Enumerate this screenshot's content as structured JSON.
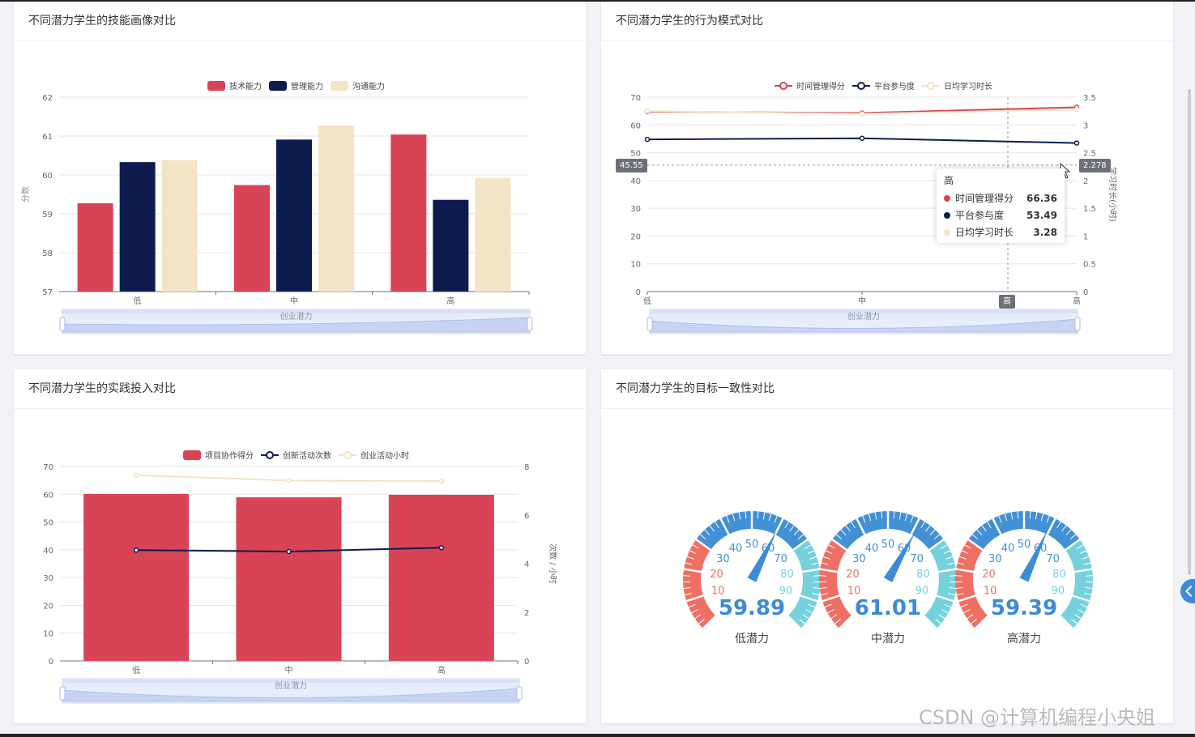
{
  "cards": {
    "skill": {
      "title": "不同潜力学生的技能画像对比"
    },
    "behavior": {
      "title": "不同潜力学生的行为模式对比"
    },
    "practice": {
      "title": "不同潜力学生的实践投入对比"
    },
    "goal": {
      "title": "不同潜力学生的目标一致性对比"
    }
  },
  "chart_data": [
    {
      "type": "bar",
      "categories": [
        "低",
        "中",
        "高"
      ],
      "series": [
        {
          "name": "技术能力",
          "values": [
            59.27,
            59.74,
            61.04
          ],
          "color": "#d84455"
        },
        {
          "name": "管理能力",
          "values": [
            60.33,
            60.91,
            59.36
          ],
          "color": "#0d1b4f"
        },
        {
          "name": "沟通能力",
          "values": [
            60.38,
            61.27,
            59.92
          ],
          "color": "#f4e4c6"
        }
      ],
      "ylim": [
        57,
        62
      ],
      "yticks": [
        "57",
        "58",
        "59",
        "60",
        "61",
        "62"
      ],
      "ylabel": "分数",
      "slider_label": "创业潜力",
      "legend": "top-center"
    },
    {
      "type": "line",
      "categories": [
        "低",
        "中",
        "高"
      ],
      "series": [
        {
          "name": "时间管理得分",
          "values": [
            64.8,
            64.3,
            66.36
          ],
          "color": "#d84455",
          "axis": "left"
        },
        {
          "name": "平台参与度",
          "values": [
            54.8,
            55.2,
            53.49
          ],
          "color": "#0d1b4f",
          "axis": "left"
        },
        {
          "name": "日均学习时长",
          "values": [
            3.25,
            3.2,
            3.28
          ],
          "color": "#f4e4c6",
          "axis": "right"
        }
      ],
      "ylim_left": [
        0,
        70
      ],
      "ylim_right": [
        0,
        3.5
      ],
      "yticks_left": [
        "0",
        "10",
        "20",
        "30",
        "40",
        "50",
        "60",
        "70"
      ],
      "yticks_right": [
        "0",
        "0.5",
        "1",
        "1.5",
        "2",
        "2.5",
        "3",
        "3.5"
      ],
      "ylabel_right": "学习时长(小时)",
      "slider_label": "创业潜力",
      "legend": "top-center",
      "tooltip": {
        "title": "高",
        "rows": [
          {
            "name": "时间管理得分",
            "value": "66.36",
            "color": "#d84455"
          },
          {
            "name": "平台参与度",
            "value": "53.49",
            "color": "#0d1b4f"
          },
          {
            "name": "日均学习时长",
            "value": "3.28",
            "color": "#f4e4c6"
          }
        ]
      },
      "pointer": {
        "left": "45.55",
        "right": "2.278",
        "x": "高"
      }
    },
    {
      "type": "bar",
      "categories": [
        "低",
        "中",
        "高"
      ],
      "bar_series": {
        "name": "项目协作得分",
        "values": [
          60.1,
          58.9,
          59.8
        ],
        "color": "#d84455"
      },
      "line_series": [
        {
          "name": "创新活动次数",
          "values": [
            4.56,
            4.5,
            4.66
          ],
          "color": "#0d1b4f"
        },
        {
          "name": "创业活动小时",
          "values": [
            7.64,
            7.42,
            7.4
          ],
          "color": "#f4e4c6"
        }
      ],
      "ylim_left": [
        0,
        70
      ],
      "ylim_right": [
        0,
        8
      ],
      "yticks_left": [
        "0",
        "10",
        "20",
        "30",
        "40",
        "50",
        "60",
        "70"
      ],
      "yticks_right": [
        "0",
        "2",
        "4",
        "6",
        "8"
      ],
      "ylabel_right": "次数 / 小时",
      "slider_label": "创业潜力",
      "legend": "top-center"
    },
    {
      "type": "gauge",
      "ticks": [
        "10",
        "20",
        "30",
        "40",
        "50",
        "60",
        "70",
        "80",
        "90"
      ],
      "gauges": [
        {
          "name": "低潜力",
          "value": 59.89,
          "label": "59.89"
        },
        {
          "name": "中潜力",
          "value": 61.01,
          "label": "61.01"
        },
        {
          "name": "高潜力",
          "value": 59.39,
          "label": "59.39"
        }
      ]
    }
  ],
  "watermark": "CSDN @计算机编程小央姐"
}
